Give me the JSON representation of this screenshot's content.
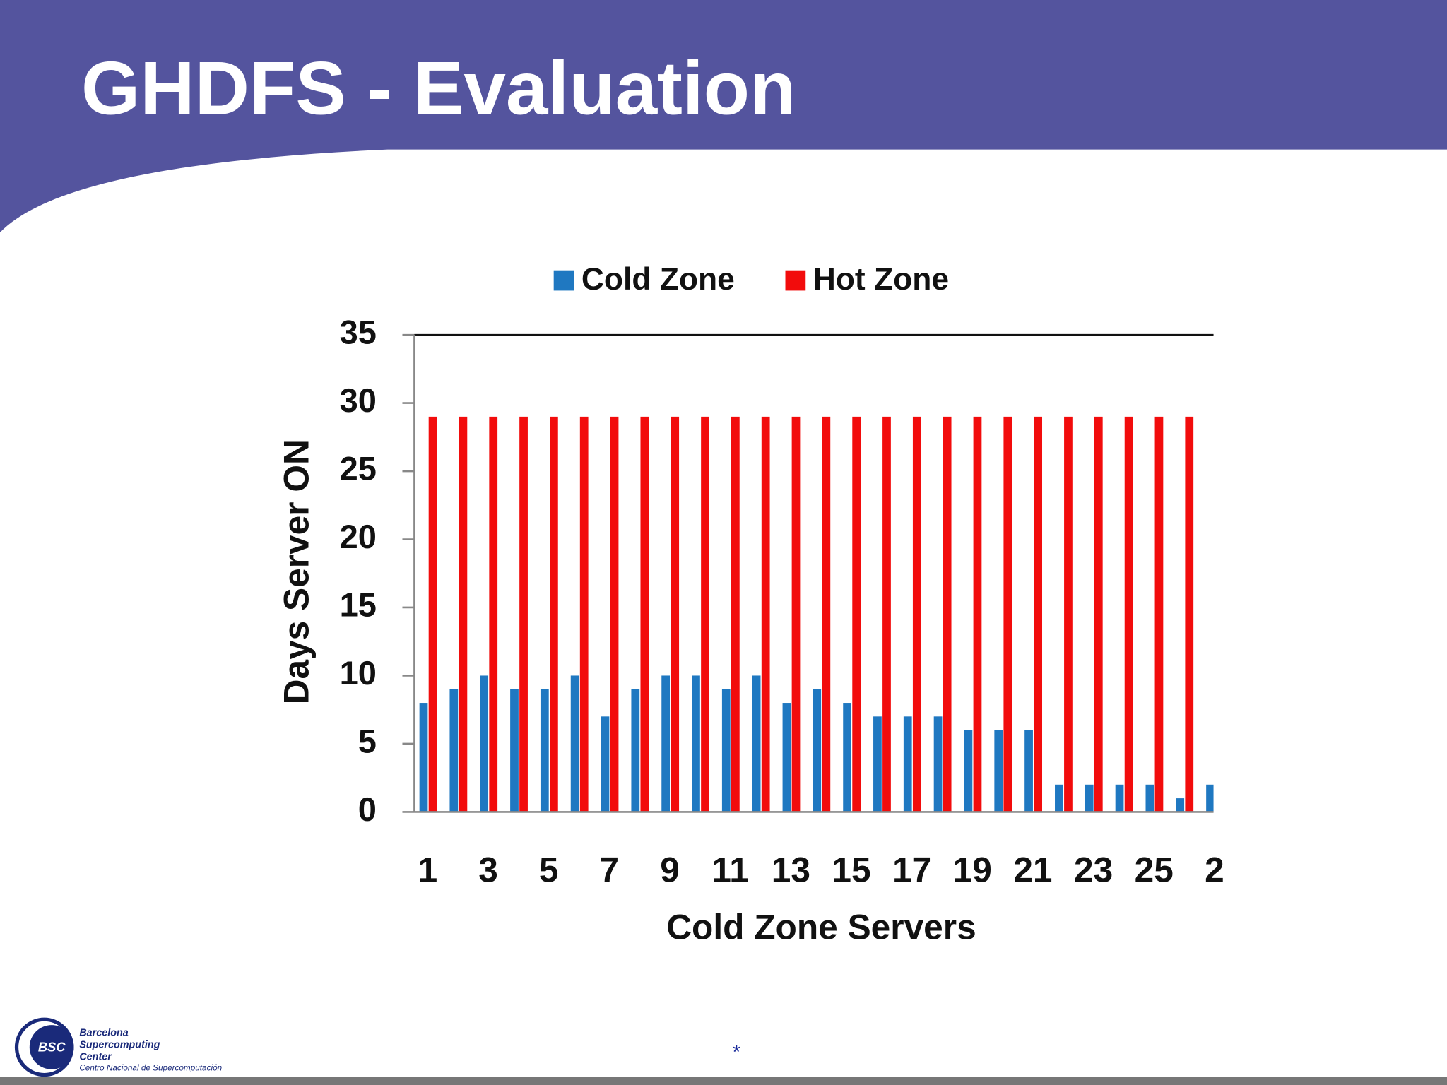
{
  "slide_title": "GHDFS - Evaluation",
  "chart_data": {
    "type": "bar",
    "categories": [
      "1",
      null,
      "3",
      null,
      "5",
      null,
      "7",
      null,
      "9",
      null,
      "11",
      null,
      "13",
      null,
      "15",
      null,
      "17",
      null,
      "19",
      null,
      "21",
      null,
      "23",
      null,
      "25",
      null,
      "2"
    ],
    "series": [
      {
        "name": "Cold Zone",
        "color": "#1f78c1",
        "values": [
          8,
          9,
          10,
          9,
          9,
          10,
          7,
          9,
          10,
          10,
          9,
          10,
          8,
          9,
          8,
          7,
          7,
          7,
          6,
          6,
          6,
          2,
          2,
          2,
          2,
          1,
          2
        ]
      },
      {
        "name": "Hot Zone",
        "color": "#f20c0c",
        "values": [
          29,
          29,
          29,
          29,
          29,
          29,
          29,
          29,
          29,
          29,
          29,
          29,
          29,
          29,
          29,
          29,
          29,
          29,
          29,
          29,
          29,
          29,
          29,
          29,
          29,
          29,
          null
        ]
      }
    ],
    "x_label": "Cold Zone Servers",
    "y_label": "Days Server ON",
    "ylim": [
      0,
      35
    ],
    "yticks": [
      0,
      5,
      10,
      15,
      20,
      25,
      30,
      35
    ],
    "legend": "top"
  },
  "footer": {
    "logo": "BSC",
    "org_lines": [
      "Barcelona",
      "Supercomputing",
      "Center"
    ],
    "org_subtitle": "Centro Nacional de Supercomputación",
    "mark": "*"
  }
}
